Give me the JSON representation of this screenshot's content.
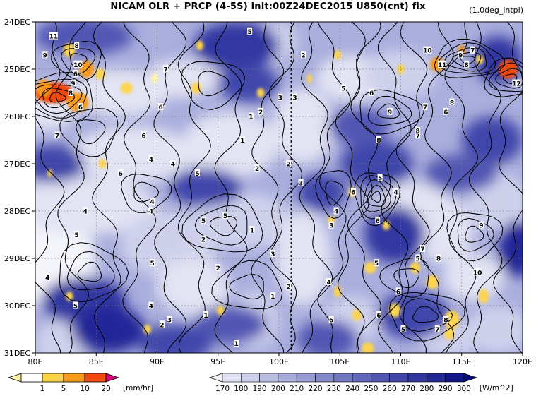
{
  "title": "NICAM  OLR + PRCP (4-5S) init:00Z24DEC2015 U850(cnt) fix",
  "note": "(1.0deg_intpl)",
  "chart_data": {
    "type": "heatmap",
    "title": "NICAM  OLR + PRCP (4-5S) init:00Z24DEC2015 U850(cnt) fix",
    "x_ticks": [
      "80E",
      "85E",
      "90E",
      "95E",
      "100E",
      "105E",
      "110E",
      "115E",
      "120E"
    ],
    "x_values": [
      80,
      85,
      90,
      95,
      100,
      105,
      110,
      115,
      120
    ],
    "xlim": [
      80,
      120
    ],
    "y_ticks": [
      "24DEC",
      "25DEC",
      "26DEC",
      "27DEC",
      "28DEC",
      "29DEC",
      "30DEC",
      "31DEC"
    ],
    "y_values": [
      24,
      25,
      26,
      27,
      28,
      29,
      30,
      31
    ],
    "ylim": [
      24,
      31
    ],
    "vertical_line_x": 101,
    "precip_colorbar": {
      "levels": [
        "1",
        "5",
        "10",
        "20"
      ],
      "unit": "[mm/hr]",
      "colors": [
        "#fff3a8",
        "#fdd44e",
        "#f79a1e",
        "#f04a0e",
        "#d9007a"
      ]
    },
    "olr_colorbar": {
      "levels": [
        "170",
        "180",
        "190",
        "200",
        "210",
        "220",
        "230",
        "240",
        "250",
        "260",
        "270",
        "280",
        "290",
        "300"
      ],
      "unit": "[W/m^2]",
      "colors": [
        "#f4f4fb",
        "#e2e3f3",
        "#cfd1ec",
        "#bcbfe4",
        "#a9addc",
        "#979bd4",
        "#858acc",
        "#7378c3",
        "#6267bb",
        "#5156b3",
        "#4146aa",
        "#3137a1",
        "#222898",
        "#141a8d",
        "#090e7e"
      ]
    },
    "contour_labels": [
      {
        "v": "11",
        "x": 81.5,
        "y": 24.3
      },
      {
        "v": "9",
        "x": 80.8,
        "y": 24.7
      },
      {
        "v": "8",
        "x": 83.4,
        "y": 24.5
      },
      {
        "v": "10",
        "x": 83.5,
        "y": 24.9
      },
      {
        "v": "6",
        "x": 83.3,
        "y": 25.1
      },
      {
        "v": "9",
        "x": 83.1,
        "y": 25.3
      },
      {
        "v": "8",
        "x": 82.9,
        "y": 25.5
      },
      {
        "v": "6",
        "x": 83.7,
        "y": 25.8
      },
      {
        "v": "7",
        "x": 81.8,
        "y": 26.4
      },
      {
        "v": "7",
        "x": 90.7,
        "y": 25.0
      },
      {
        "v": "6",
        "x": 90.3,
        "y": 25.8
      },
      {
        "v": "6",
        "x": 88.9,
        "y": 26.4
      },
      {
        "v": "4",
        "x": 89.5,
        "y": 26.9
      },
      {
        "v": "6",
        "x": 87.0,
        "y": 27.2
      },
      {
        "v": "4",
        "x": 91.3,
        "y": 27.0
      },
      {
        "v": "5",
        "x": 93.3,
        "y": 27.2
      },
      {
        "v": "5",
        "x": 97.6,
        "y": 24.2
      },
      {
        "v": "3",
        "x": 100.1,
        "y": 25.6
      },
      {
        "v": "1",
        "x": 97.7,
        "y": 26.0
      },
      {
        "v": "2",
        "x": 98.5,
        "y": 25.9
      },
      {
        "v": "1",
        "x": 97.0,
        "y": 26.5
      },
      {
        "v": "2",
        "x": 98.2,
        "y": 27.1
      },
      {
        "v": "3",
        "x": 101.8,
        "y": 27.4
      },
      {
        "v": "2",
        "x": 100.8,
        "y": 27.0
      },
      {
        "v": "3",
        "x": 101.3,
        "y": 25.6
      },
      {
        "v": "2",
        "x": 102.0,
        "y": 24.7
      },
      {
        "v": "5",
        "x": 105.3,
        "y": 25.4
      },
      {
        "v": "6",
        "x": 107.6,
        "y": 25.5
      },
      {
        "v": "9",
        "x": 109.1,
        "y": 25.9
      },
      {
        "v": "8",
        "x": 108.2,
        "y": 26.5
      },
      {
        "v": "7",
        "x": 111.4,
        "y": 26.4
      },
      {
        "v": "8",
        "x": 111.4,
        "y": 26.3
      },
      {
        "v": "7",
        "x": 112.0,
        "y": 25.8
      },
      {
        "v": "6",
        "x": 113.7,
        "y": 25.9
      },
      {
        "v": "8",
        "x": 114.2,
        "y": 25.7
      },
      {
        "v": "10",
        "x": 112.2,
        "y": 24.6
      },
      {
        "v": "7",
        "x": 115.9,
        "y": 24.6
      },
      {
        "v": "9",
        "x": 114.9,
        "y": 24.7
      },
      {
        "v": "8",
        "x": 115.4,
        "y": 24.9
      },
      {
        "v": "11",
        "x": 113.4,
        "y": 24.9
      },
      {
        "v": "12",
        "x": 119.5,
        "y": 25.3
      },
      {
        "v": "5",
        "x": 108.3,
        "y": 27.3
      },
      {
        "v": "4",
        "x": 109.6,
        "y": 27.6
      },
      {
        "v": "6",
        "x": 106.1,
        "y": 27.6
      },
      {
        "v": "6",
        "x": 108.1,
        "y": 28.2
      },
      {
        "v": "4",
        "x": 104.7,
        "y": 28.0
      },
      {
        "v": "3",
        "x": 104.3,
        "y": 28.3
      },
      {
        "v": "4",
        "x": 104.1,
        "y": 29.5
      },
      {
        "v": "5",
        "x": 108.0,
        "y": 29.1
      },
      {
        "v": "6",
        "x": 109.8,
        "y": 29.7
      },
      {
        "v": "6",
        "x": 104.3,
        "y": 30.3
      },
      {
        "v": "6",
        "x": 108.2,
        "y": 30.2
      },
      {
        "v": "7",
        "x": 111.8,
        "y": 28.8
      },
      {
        "v": "8",
        "x": 113.1,
        "y": 29.0
      },
      {
        "v": "5",
        "x": 111.4,
        "y": 29.0
      },
      {
        "v": "9",
        "x": 116.6,
        "y": 28.3
      },
      {
        "v": "10",
        "x": 116.3,
        "y": 29.3
      },
      {
        "v": "8",
        "x": 113.7,
        "y": 30.3
      },
      {
        "v": "7",
        "x": 113.0,
        "y": 30.5
      },
      {
        "v": "5",
        "x": 110.2,
        "y": 30.5
      },
      {
        "v": "4",
        "x": 89.5,
        "y": 28.0
      },
      {
        "v": "4",
        "x": 89.6,
        "y": 27.8
      },
      {
        "v": "4",
        "x": 84.1,
        "y": 28.0
      },
      {
        "v": "5",
        "x": 83.4,
        "y": 28.5
      },
      {
        "v": "5",
        "x": 93.8,
        "y": 28.2
      },
      {
        "v": "2",
        "x": 93.8,
        "y": 28.6
      },
      {
        "v": "5",
        "x": 95.6,
        "y": 28.1
      },
      {
        "v": "1",
        "x": 97.8,
        "y": 28.4
      },
      {
        "v": "3",
        "x": 99.5,
        "y": 28.9
      },
      {
        "v": "2",
        "x": 95.0,
        "y": 29.2
      },
      {
        "v": "5",
        "x": 89.6,
        "y": 29.1
      },
      {
        "v": "4",
        "x": 81.0,
        "y": 29.4
      },
      {
        "v": "5",
        "x": 83.3,
        "y": 30.0
      },
      {
        "v": "4",
        "x": 89.5,
        "y": 30.0
      },
      {
        "v": "2",
        "x": 90.4,
        "y": 30.4
      },
      {
        "v": "3",
        "x": 91.0,
        "y": 30.3
      },
      {
        "v": "1",
        "x": 94.0,
        "y": 30.2
      },
      {
        "v": "1",
        "x": 99.5,
        "y": 29.8
      },
      {
        "v": "2",
        "x": 100.8,
        "y": 29.6
      },
      {
        "v": "1",
        "x": 96.5,
        "y": 30.8
      }
    ]
  }
}
